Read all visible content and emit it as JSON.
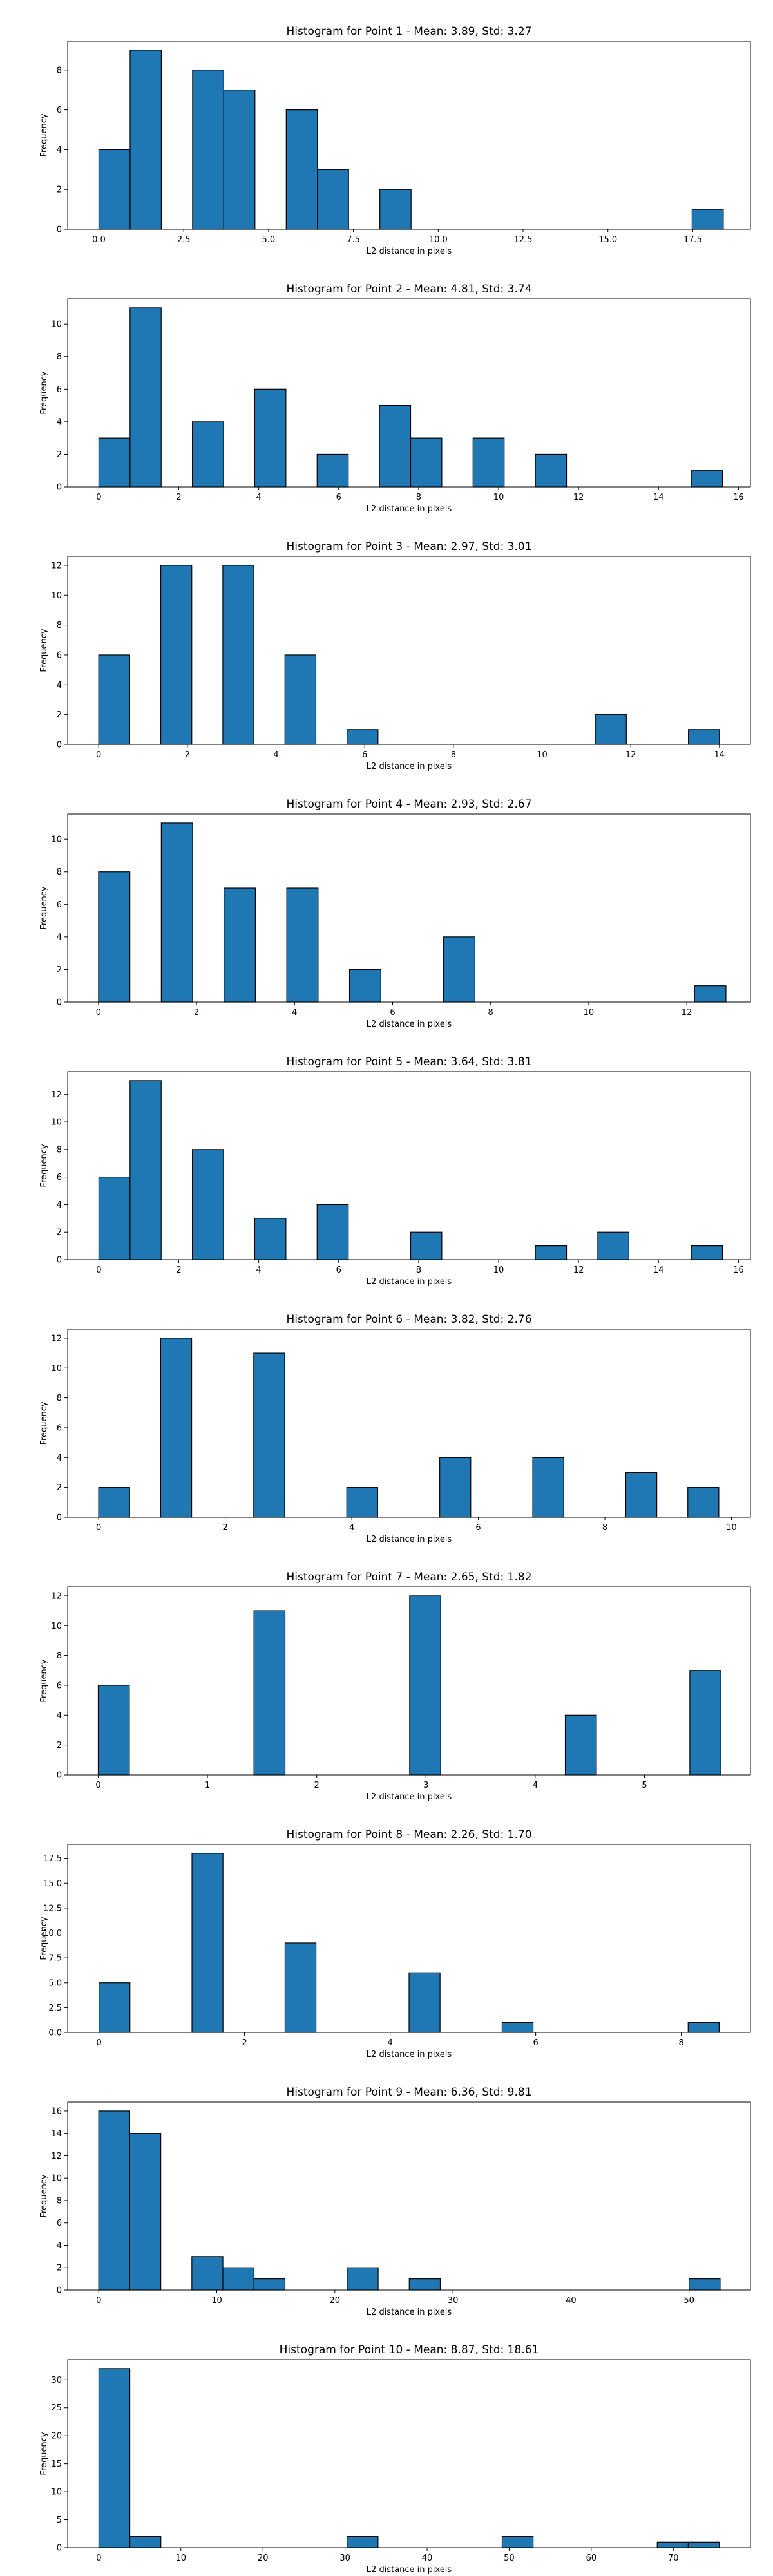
{
  "chart_data": [
    {
      "type": "bar",
      "title": "Histogram for Point 1 - Mean: 3.89, Std: 3.27",
      "xlabel": "L2 distance in pixels",
      "ylabel": "Frequency",
      "xlim": [
        -0.92,
        19.2
      ],
      "ylim": [
        0,
        9.45
      ],
      "xticks": [
        0,
        2.5,
        5,
        7.5,
        10,
        12.5,
        15,
        17.5
      ],
      "xtick_labels": [
        "0.0",
        "2.5",
        "5.0",
        "7.5",
        "10.0",
        "12.5",
        "15.0",
        "17.5"
      ],
      "yticks": [
        0,
        2,
        4,
        6,
        8
      ],
      "bin_width": 0.92,
      "bins": [
        {
          "x": 0.0,
          "count": 4
        },
        {
          "x": 0.92,
          "count": 9
        },
        {
          "x": 2.76,
          "count": 8
        },
        {
          "x": 3.68,
          "count": 7
        },
        {
          "x": 5.52,
          "count": 6
        },
        {
          "x": 6.44,
          "count": 3
        },
        {
          "x": 8.28,
          "count": 2
        },
        {
          "x": 17.48,
          "count": 1
        }
      ],
      "grid": false,
      "legend": "none",
      "bar_color": "#1f77b4"
    },
    {
      "type": "bar",
      "title": "Histogram for Point 2 - Mean: 4.81, Std: 3.74",
      "xlabel": "L2 distance in pixels",
      "ylabel": "Frequency",
      "xlim": [
        -0.78,
        16.3
      ],
      "ylim": [
        0,
        11.55
      ],
      "xticks": [
        0,
        2,
        4,
        6,
        8,
        10,
        12,
        14,
        16
      ],
      "xtick_labels": [
        "0",
        "2",
        "4",
        "6",
        "8",
        "10",
        "12",
        "14",
        "16"
      ],
      "yticks": [
        0,
        2,
        4,
        6,
        8,
        10
      ],
      "bin_width": 0.78,
      "bins": [
        {
          "x": 0.0,
          "count": 3
        },
        {
          "x": 0.78,
          "count": 11
        },
        {
          "x": 2.34,
          "count": 4
        },
        {
          "x": 3.9,
          "count": 6
        },
        {
          "x": 5.46,
          "count": 2
        },
        {
          "x": 7.02,
          "count": 5
        },
        {
          "x": 7.8,
          "count": 3
        },
        {
          "x": 9.36,
          "count": 3
        },
        {
          "x": 10.92,
          "count": 2
        },
        {
          "x": 14.82,
          "count": 1
        }
      ],
      "grid": false,
      "legend": "none",
      "bar_color": "#1f77b4"
    },
    {
      "type": "bar",
      "title": "Histogram for Point 3 - Mean: 2.97, Std: 3.01",
      "xlabel": "L2 distance in pixels",
      "ylabel": "Frequency",
      "xlim": [
        -0.7,
        14.7
      ],
      "ylim": [
        0,
        12.6
      ],
      "xticks": [
        0,
        2,
        4,
        6,
        8,
        10,
        12,
        14
      ],
      "xtick_labels": [
        "0",
        "2",
        "4",
        "6",
        "8",
        "10",
        "12",
        "14"
      ],
      "yticks": [
        0,
        2,
        4,
        6,
        8,
        10,
        12
      ],
      "bin_width": 0.7,
      "bins": [
        {
          "x": 0.0,
          "count": 6
        },
        {
          "x": 1.4,
          "count": 12
        },
        {
          "x": 2.8,
          "count": 12
        },
        {
          "x": 4.2,
          "count": 6
        },
        {
          "x": 5.6,
          "count": 1
        },
        {
          "x": 11.2,
          "count": 2
        },
        {
          "x": 13.3,
          "count": 1
        }
      ],
      "grid": false,
      "legend": "none",
      "bar_color": "#1f77b4"
    },
    {
      "type": "bar",
      "title": "Histogram for Point 4 - Mean: 2.93, Std: 2.67",
      "xlabel": "L2 distance in pixels",
      "ylabel": "Frequency",
      "xlim": [
        -0.63,
        13.3
      ],
      "ylim": [
        0,
        11.55
      ],
      "xticks": [
        0,
        2,
        4,
        6,
        8,
        10,
        12
      ],
      "xtick_labels": [
        "0",
        "2",
        "4",
        "6",
        "8",
        "10",
        "12"
      ],
      "yticks": [
        0,
        2,
        4,
        6,
        8,
        10
      ],
      "bin_width": 0.64,
      "bins": [
        {
          "x": 0.0,
          "count": 8
        },
        {
          "x": 1.28,
          "count": 11
        },
        {
          "x": 2.56,
          "count": 7
        },
        {
          "x": 3.84,
          "count": 7
        },
        {
          "x": 5.12,
          "count": 2
        },
        {
          "x": 7.04,
          "count": 4
        },
        {
          "x": 12.16,
          "count": 1
        }
      ],
      "grid": false,
      "legend": "none",
      "bar_color": "#1f77b4"
    },
    {
      "type": "bar",
      "title": "Histogram for Point 5 - Mean: 3.64, Std: 3.81",
      "xlabel": "L2 distance in pixels",
      "ylabel": "Frequency",
      "xlim": [
        -0.78,
        16.3
      ],
      "ylim": [
        0,
        13.65
      ],
      "xticks": [
        0,
        2,
        4,
        6,
        8,
        10,
        12,
        14,
        16
      ],
      "xtick_labels": [
        "0",
        "2",
        "4",
        "6",
        "8",
        "10",
        "12",
        "14",
        "16"
      ],
      "yticks": [
        0,
        2,
        4,
        6,
        8,
        10,
        12
      ],
      "bin_width": 0.78,
      "bins": [
        {
          "x": 0.0,
          "count": 6
        },
        {
          "x": 0.78,
          "count": 13
        },
        {
          "x": 2.34,
          "count": 8
        },
        {
          "x": 3.9,
          "count": 3
        },
        {
          "x": 5.46,
          "count": 4
        },
        {
          "x": 7.8,
          "count": 2
        },
        {
          "x": 10.92,
          "count": 1
        },
        {
          "x": 12.48,
          "count": 2
        },
        {
          "x": 14.82,
          "count": 1
        }
      ],
      "grid": false,
      "legend": "none",
      "bar_color": "#1f77b4"
    },
    {
      "type": "bar",
      "title": "Histogram for Point 6 - Mean: 3.82, Std: 2.76",
      "xlabel": "L2 distance in pixels",
      "ylabel": "Frequency",
      "xlim": [
        -0.49,
        10.3
      ],
      "ylim": [
        0,
        12.6
      ],
      "xticks": [
        0,
        2,
        4,
        6,
        8,
        10
      ],
      "xtick_labels": [
        "0",
        "2",
        "4",
        "6",
        "8",
        "10"
      ],
      "yticks": [
        0,
        2,
        4,
        6,
        8,
        10,
        12
      ],
      "bin_width": 0.49,
      "bins": [
        {
          "x": 0.0,
          "count": 2
        },
        {
          "x": 0.98,
          "count": 12
        },
        {
          "x": 2.45,
          "count": 11
        },
        {
          "x": 3.92,
          "count": 2
        },
        {
          "x": 5.39,
          "count": 4
        },
        {
          "x": 6.86,
          "count": 4
        },
        {
          "x": 8.33,
          "count": 3
        },
        {
          "x": 9.31,
          "count": 2
        }
      ],
      "grid": false,
      "legend": "none",
      "bar_color": "#1f77b4"
    },
    {
      "type": "bar",
      "title": "Histogram for Point 7 - Mean: 2.65, Std: 1.82",
      "xlabel": "L2 distance in pixels",
      "ylabel": "Frequency",
      "xlim": [
        -0.28,
        5.97
      ],
      "ylim": [
        0,
        12.6
      ],
      "xticks": [
        0,
        1,
        2,
        3,
        4,
        5
      ],
      "xtick_labels": [
        "0",
        "1",
        "2",
        "3",
        "4",
        "5"
      ],
      "yticks": [
        0,
        2,
        4,
        6,
        8,
        10,
        12
      ],
      "bin_width": 0.285,
      "bins": [
        {
          "x": 0.0,
          "count": 6
        },
        {
          "x": 1.425,
          "count": 11
        },
        {
          "x": 2.85,
          "count": 12
        },
        {
          "x": 4.275,
          "count": 4
        },
        {
          "x": 5.415,
          "count": 7
        }
      ],
      "grid": false,
      "legend": "none",
      "bar_color": "#1f77b4"
    },
    {
      "type": "bar",
      "title": "Histogram for Point 8 - Mean: 2.26, Std: 1.70",
      "xlabel": "L2 distance in pixels",
      "ylabel": "Frequency",
      "xlim": [
        -0.43,
        8.95
      ],
      "ylim": [
        0,
        18.9
      ],
      "xticks": [
        0,
        2,
        4,
        6,
        8
      ],
      "xtick_labels": [
        "0",
        "2",
        "4",
        "6",
        "8"
      ],
      "yticks": [
        0,
        2.5,
        5,
        7.5,
        10,
        12.5,
        15,
        17.5
      ],
      "ytick_labels": [
        "0.0",
        "2.5",
        "5.0",
        "7.5",
        "10.0",
        "12.5",
        "15.0",
        "17.5"
      ],
      "bin_width": 0.426,
      "bins": [
        {
          "x": 0.0,
          "count": 5
        },
        {
          "x": 1.278,
          "count": 18
        },
        {
          "x": 2.556,
          "count": 9
        },
        {
          "x": 4.26,
          "count": 6
        },
        {
          "x": 5.538,
          "count": 1
        },
        {
          "x": 8.094,
          "count": 1
        }
      ],
      "grid": false,
      "legend": "none",
      "bar_color": "#1f77b4"
    },
    {
      "type": "bar",
      "title": "Histogram for Point 9 - Mean: 6.36, Std: 9.81",
      "xlabel": "L2 distance in pixels",
      "ylabel": "Frequency",
      "xlim": [
        -2.63,
        55.2
      ],
      "ylim": [
        0,
        16.8
      ],
      "xticks": [
        0,
        10,
        20,
        30,
        40,
        50
      ],
      "xtick_labels": [
        "0",
        "10",
        "20",
        "30",
        "40",
        "50"
      ],
      "yticks": [
        0,
        2,
        4,
        6,
        8,
        10,
        12,
        14,
        16
      ],
      "bin_width": 2.63,
      "bins": [
        {
          "x": 0.0,
          "count": 16
        },
        {
          "x": 2.63,
          "count": 14
        },
        {
          "x": 7.89,
          "count": 3
        },
        {
          "x": 10.52,
          "count": 2
        },
        {
          "x": 13.15,
          "count": 1
        },
        {
          "x": 21.04,
          "count": 2
        },
        {
          "x": 26.3,
          "count": 1
        },
        {
          "x": 50.0,
          "count": 1
        }
      ],
      "grid": false,
      "legend": "none",
      "bar_color": "#1f77b4"
    },
    {
      "type": "bar",
      "title": "Histogram for Point 10 - Mean: 8.87, Std: 18.61",
      "xlabel": "L2 distance in pixels",
      "ylabel": "Frequency",
      "xlim": [
        -3.8,
        79.4
      ],
      "ylim": [
        0,
        33.6
      ],
      "xticks": [
        0,
        10,
        20,
        30,
        40,
        50,
        60,
        70
      ],
      "xtick_labels": [
        "0",
        "10",
        "20",
        "30",
        "40",
        "50",
        "60",
        "70"
      ],
      "yticks": [
        0,
        5,
        10,
        15,
        20,
        25,
        30
      ],
      "bin_width": 3.78,
      "bins": [
        {
          "x": 0.0,
          "count": 32
        },
        {
          "x": 3.78,
          "count": 2
        },
        {
          "x": 30.24,
          "count": 2
        },
        {
          "x": 49.14,
          "count": 2
        },
        {
          "x": 68.04,
          "count": 1
        },
        {
          "x": 71.82,
          "count": 1
        }
      ],
      "grid": false,
      "legend": "none",
      "bar_color": "#1f77b4"
    }
  ]
}
